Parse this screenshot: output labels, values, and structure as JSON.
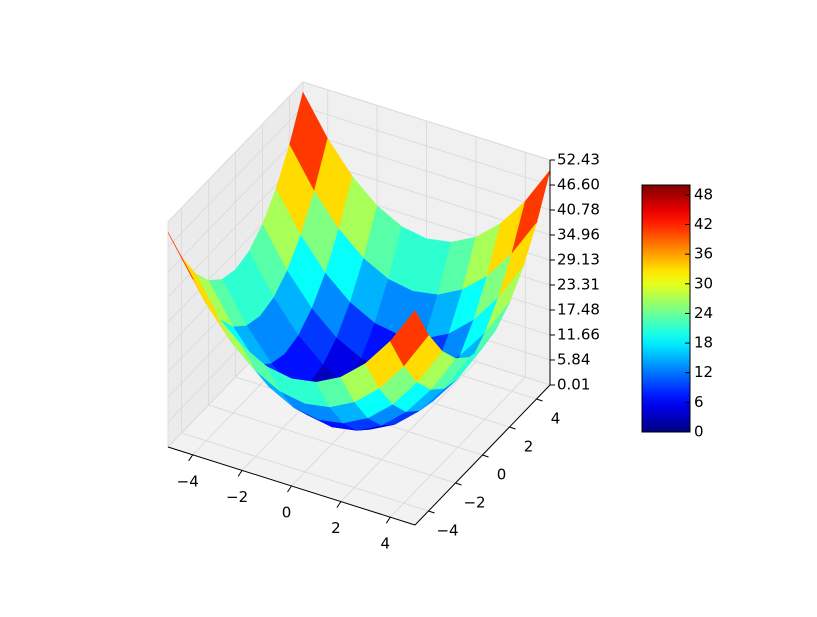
{
  "chart_data": {
    "type": "surface",
    "colormap": "jet",
    "x": [
      -5,
      -4,
      -3,
      -2,
      -1,
      0,
      1,
      2,
      3,
      4,
      5
    ],
    "y": [
      -5,
      -4,
      -3,
      -2,
      -1,
      0,
      1,
      2,
      3,
      4,
      5
    ],
    "z": [
      [
        50,
        41,
        34,
        29,
        26,
        25,
        26,
        29,
        34,
        41,
        50
      ],
      [
        41,
        32,
        25,
        20,
        17,
        16,
        17,
        20,
        25,
        32,
        41
      ],
      [
        34,
        25,
        18,
        13,
        10,
        9,
        10,
        13,
        18,
        25,
        34
      ],
      [
        29,
        20,
        13,
        8,
        5,
        4,
        5,
        8,
        13,
        20,
        29
      ],
      [
        26,
        17,
        10,
        5,
        2,
        1,
        2,
        5,
        10,
        17,
        26
      ],
      [
        25,
        16,
        9,
        4,
        1,
        0,
        1,
        4,
        9,
        16,
        25
      ],
      [
        26,
        17,
        10,
        5,
        2,
        1,
        2,
        5,
        10,
        17,
        26
      ],
      [
        29,
        20,
        13,
        8,
        5,
        4,
        5,
        8,
        13,
        20,
        29
      ],
      [
        34,
        25,
        18,
        13,
        10,
        9,
        10,
        13,
        18,
        25,
        34
      ],
      [
        41,
        32,
        25,
        20,
        17,
        16,
        17,
        20,
        25,
        32,
        41
      ],
      [
        50,
        41,
        34,
        29,
        26,
        25,
        26,
        29,
        34,
        41,
        50
      ]
    ],
    "xlim": [
      -5,
      5
    ],
    "ylim": [
      -5,
      5
    ],
    "zlim": [
      0.01,
      52.43
    ],
    "xticks": [
      {
        "value": -4,
        "label": "−4"
      },
      {
        "value": -2,
        "label": "−2"
      },
      0,
      2,
      4
    ],
    "yticks": [
      {
        "value": -4,
        "label": "−4"
      },
      {
        "value": -2,
        "label": "−2"
      },
      0,
      2,
      4
    ],
    "zticks": [
      0.01,
      5.84,
      11.66,
      17.48,
      23.31,
      29.13,
      34.96,
      40.78,
      {
        "value": 46.6,
        "label": "46.60"
      },
      52.43
    ],
    "colorbar": {
      "clim": [
        0,
        50
      ],
      "ticks": [
        0,
        6,
        12,
        18,
        24,
        30,
        36,
        42,
        48
      ]
    }
  }
}
